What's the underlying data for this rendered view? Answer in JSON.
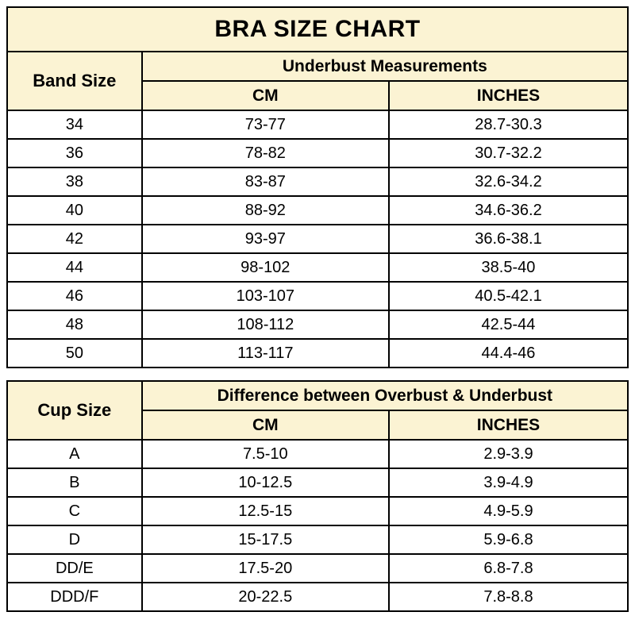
{
  "title": "BRA SIZE CHART",
  "colors": {
    "header_bg": "#FBF3D3",
    "border": "#000000",
    "row_bg": "#FFFFFF",
    "text": "#000000"
  },
  "chart_data": [
    {
      "type": "table",
      "name": "band-size-table",
      "corner_header": "Band Size",
      "group_header": "Underbust Measurements",
      "col_headers": [
        "CM",
        "INCHES"
      ],
      "rows": [
        [
          "34",
          "73-77",
          "28.7-30.3"
        ],
        [
          "36",
          "78-82",
          "30.7-32.2"
        ],
        [
          "38",
          "83-87",
          "32.6-34.2"
        ],
        [
          "40",
          "88-92",
          "34.6-36.2"
        ],
        [
          "42",
          "93-97",
          "36.6-38.1"
        ],
        [
          "44",
          "98-102",
          "38.5-40"
        ],
        [
          "46",
          "103-107",
          "40.5-42.1"
        ],
        [
          "48",
          "108-112",
          "42.5-44"
        ],
        [
          "50",
          "113-117",
          "44.4-46"
        ]
      ]
    },
    {
      "type": "table",
      "name": "cup-size-table",
      "corner_header": "Cup Size",
      "group_header": "Difference between Overbust & Underbust",
      "col_headers": [
        "CM",
        "INCHES"
      ],
      "rows": [
        [
          "A",
          "7.5-10",
          "2.9-3.9"
        ],
        [
          "B",
          "10-12.5",
          "3.9-4.9"
        ],
        [
          "C",
          "12.5-15",
          "4.9-5.9"
        ],
        [
          "D",
          "15-17.5",
          "5.9-6.8"
        ],
        [
          "DD/E",
          "17.5-20",
          "6.8-7.8"
        ],
        [
          "DDD/F",
          "20-22.5",
          "7.8-8.8"
        ]
      ]
    }
  ]
}
